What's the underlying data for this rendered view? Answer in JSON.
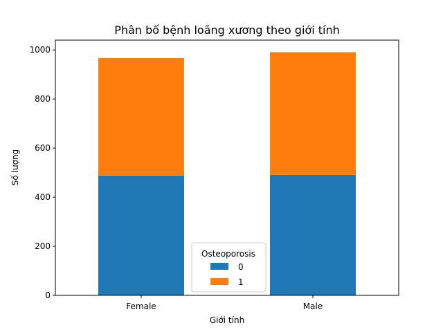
{
  "chart_data": {
    "type": "bar",
    "stacked": true,
    "title": "Phân bố bệnh loãng xương theo giới tính",
    "xlabel": "Giới tính",
    "ylabel": "Số lượng",
    "categories": [
      "Female",
      "Male"
    ],
    "series": [
      {
        "name": "0",
        "values": [
          488,
          491
        ],
        "color": "#1f77b4"
      },
      {
        "name": "1",
        "values": [
          479,
          500
        ],
        "color": "#ff7f0e"
      }
    ],
    "ylim": [
      0,
      1040
    ],
    "yticks": [
      0,
      200,
      400,
      600,
      800,
      1000
    ],
    "legend": {
      "title": "Osteoporosis",
      "position": "lower-center"
    },
    "grid": false
  }
}
